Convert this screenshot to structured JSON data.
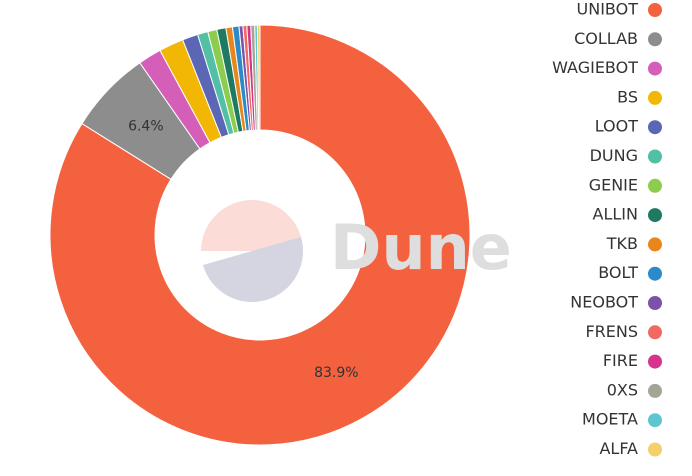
{
  "chart_data": {
    "type": "donut",
    "watermark": "Dune",
    "categories": [
      "UNIBOT",
      "COLLAB",
      "WAGIEBOT",
      "BS",
      "LOOT",
      "DUNG",
      "GENIE",
      "ALLIN",
      "TKB",
      "BOLT",
      "NEOBOT",
      "FRENS",
      "FIRE",
      "0XS",
      "MOETA",
      "ALFA"
    ],
    "values": [
      83.9,
      6.4,
      1.8,
      1.9,
      1.2,
      0.8,
      0.7,
      0.7,
      0.5,
      0.5,
      0.3,
      0.3,
      0.3,
      0.3,
      0.2,
      0.2
    ],
    "value_labels": [
      "83.9%",
      "6.4%",
      null,
      null,
      null,
      null,
      null,
      null,
      null,
      null,
      null,
      null,
      null,
      null,
      null,
      null
    ],
    "colors": [
      "#f4613f",
      "#8d8d8d",
      "#d55fb8",
      "#f2b705",
      "#5b67b5",
      "#52c0a5",
      "#8ccc4e",
      "#1f7a63",
      "#e8861c",
      "#2c8ac9",
      "#7a53a8",
      "#ee6a62",
      "#d6338a",
      "#a5a595",
      "#5ec6cf",
      "#f4cf6a"
    ],
    "legend": "right"
  }
}
